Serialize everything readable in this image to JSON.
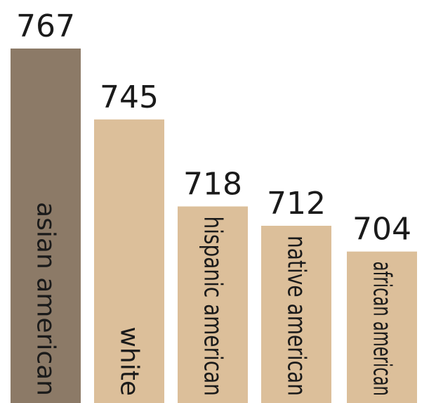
{
  "chart_data": {
    "type": "bar",
    "categories": [
      "asian american",
      "white",
      "hispanic american",
      "native american",
      "african american"
    ],
    "values": [
      767,
      745,
      718,
      712,
      704
    ],
    "title": "",
    "xlabel": "",
    "ylabel": "",
    "ylim": [
      657,
      767
    ],
    "grid": false,
    "legend": "none",
    "value_labels": [
      "767",
      "745",
      "718",
      "712",
      "704"
    ],
    "colors": {
      "highlight": "#8c7a67",
      "default": "#dcbf9a",
      "text": "#1a1a1a"
    },
    "highlight_index": 0
  }
}
